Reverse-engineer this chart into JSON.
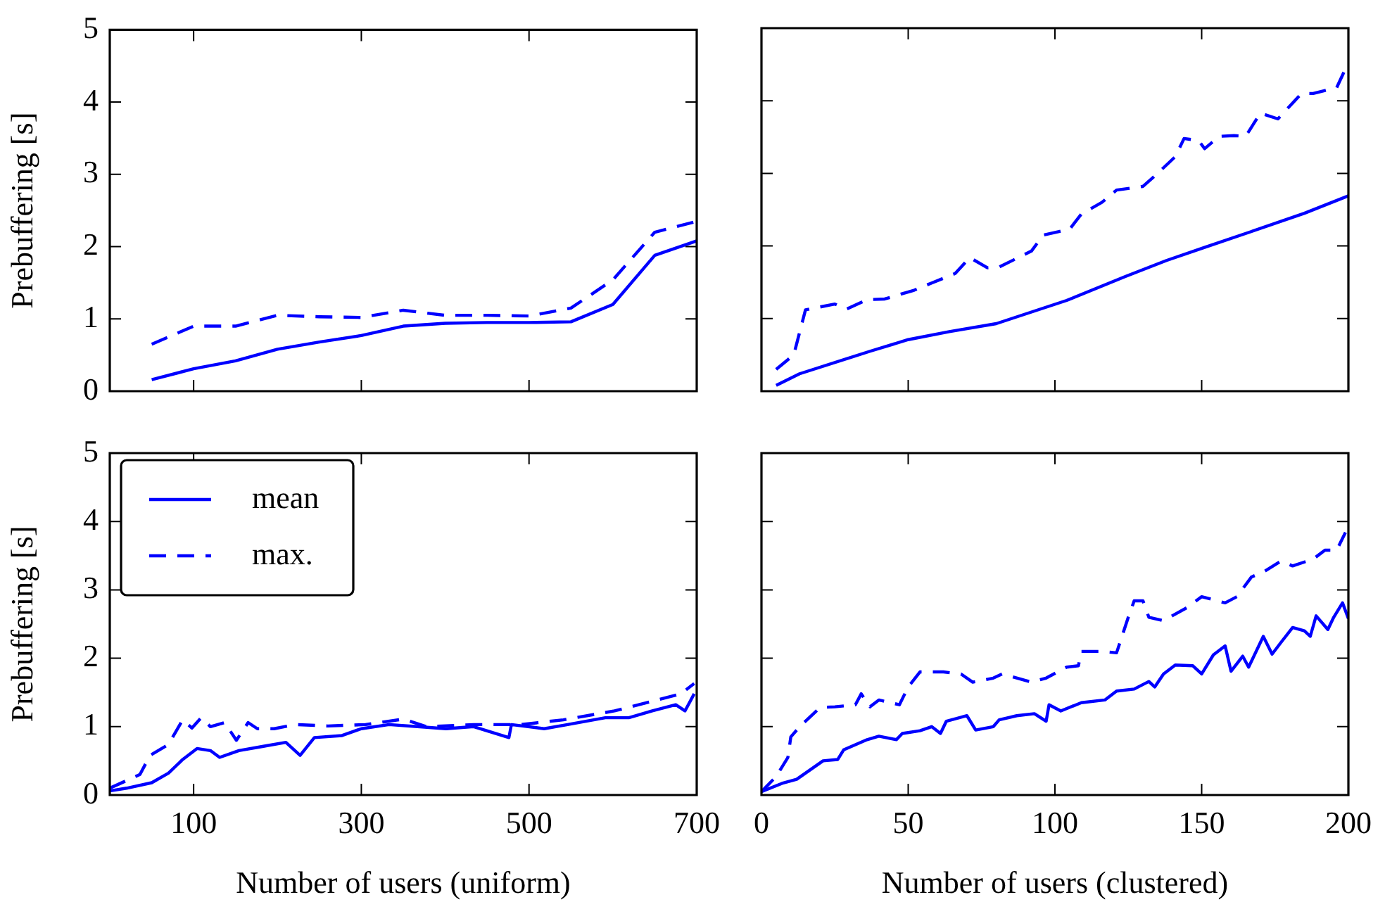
{
  "chart_data": [
    {
      "type": "line",
      "ylabel": "Prebuffering [s]",
      "xlim": [
        0,
        700
      ],
      "xticks": [
        100,
        300,
        500,
        700
      ],
      "ylim": [
        0,
        5
      ],
      "yticks": [
        0,
        1,
        2,
        3,
        4,
        5
      ],
      "tick_labels": "y",
      "series": [
        {
          "color": "#0000ff",
          "line_style": "solid",
          "x": [
            50,
            100,
            150,
            200,
            250,
            300,
            350,
            400,
            450,
            500,
            550,
            600,
            650,
            700
          ],
          "values": [
            0.16,
            0.31,
            0.42,
            0.58,
            0.68,
            0.77,
            0.9,
            0.94,
            0.95,
            0.95,
            0.96,
            1.2,
            1.88,
            2.08
          ]
        },
        {
          "color": "#0000ff",
          "line_style": "dashed",
          "x": [
            50,
            100,
            150,
            200,
            250,
            300,
            350,
            400,
            450,
            500,
            550,
            600,
            650,
            700
          ],
          "values": [
            0.65,
            0.9,
            0.9,
            1.05,
            1.03,
            1.02,
            1.12,
            1.05,
            1.05,
            1.04,
            1.15,
            1.54,
            2.2,
            2.35
          ]
        }
      ]
    },
    {
      "type": "line",
      "xlim": [
        0,
        200
      ],
      "xticks": [
        0,
        50,
        100,
        150,
        200
      ],
      "ylim": [
        0,
        5
      ],
      "yticks": [
        0,
        1,
        2,
        3,
        4,
        5
      ],
      "tick_labels": false,
      "series": [
        {
          "color": "#0000ff",
          "line_style": "solid",
          "x": [
            5,
            13,
            37,
            50,
            64,
            80,
            104,
            124,
            138,
            151,
            167,
            185,
            200
          ],
          "values": [
            0.08,
            0.24,
            0.55,
            0.71,
            0.82,
            0.93,
            1.25,
            1.58,
            1.8,
            1.98,
            2.2,
            2.45,
            2.69
          ]
        },
        {
          "color": "#0000ff",
          "line_style": "dashed",
          "x": [
            5,
            11,
            15,
            25,
            29,
            36,
            42,
            52,
            58,
            66,
            71,
            77,
            81,
            92,
            96,
            105,
            109,
            116,
            121,
            130,
            135,
            141,
            144,
            149,
            151,
            156,
            161,
            165,
            170,
            176,
            184,
            188,
            196,
            199
          ],
          "values": [
            0.3,
            0.5,
            1.12,
            1.2,
            1.13,
            1.26,
            1.27,
            1.39,
            1.49,
            1.62,
            1.84,
            1.7,
            1.71,
            1.93,
            2.15,
            2.23,
            2.44,
            2.6,
            2.77,
            2.82,
            3.0,
            3.23,
            3.48,
            3.45,
            3.34,
            3.51,
            3.52,
            3.51,
            3.83,
            3.75,
            4.1,
            4.1,
            4.18,
            4.44
          ]
        }
      ]
    },
    {
      "type": "line",
      "xlabel": "Number of users (uniform)",
      "ylabel": "Prebuffering [s]",
      "xlim": [
        0,
        700
      ],
      "xticks": [
        100,
        300,
        500,
        700
      ],
      "ylim": [
        0,
        5
      ],
      "yticks": [
        0,
        1,
        2,
        3,
        4,
        5
      ],
      "legend": "top left",
      "series": [
        {
          "name": "mean",
          "color": "#0000ff",
          "line_style": "solid",
          "x": [
            0,
            20,
            50,
            70,
            87,
            104,
            120,
            131,
            154,
            182,
            210,
            227,
            244,
            277,
            300,
            333,
            367,
            401,
            434,
            476,
            479,
            518,
            546,
            591,
            619,
            647,
            675,
            686,
            697
          ],
          "values": [
            0.06,
            0.1,
            0.18,
            0.32,
            0.52,
            0.68,
            0.65,
            0.55,
            0.65,
            0.71,
            0.77,
            0.58,
            0.84,
            0.87,
            0.97,
            1.03,
            1.0,
            0.97,
            1.0,
            0.84,
            1.03,
            0.97,
            1.03,
            1.13,
            1.13,
            1.23,
            1.32,
            1.23,
            1.48
          ]
        },
        {
          "name": "max.",
          "color": "#0000ff",
          "line_style": "dashed",
          "x": [
            0,
            36,
            48,
            70,
            87,
            98,
            109,
            120,
            137,
            151,
            165,
            176,
            196,
            221,
            260,
            305,
            350,
            378,
            434,
            490,
            541,
            602,
            653,
            681,
            697
          ],
          "values": [
            0.1,
            0.3,
            0.58,
            0.74,
            1.1,
            0.98,
            1.13,
            1.0,
            1.06,
            0.8,
            1.06,
            0.97,
            0.97,
            1.03,
            1.01,
            1.03,
            1.11,
            1.0,
            1.03,
            1.03,
            1.1,
            1.23,
            1.39,
            1.48,
            1.63
          ]
        }
      ]
    },
    {
      "type": "line",
      "xlabel": "Number of users (clustered)",
      "xlim": [
        0,
        200
      ],
      "xticks": [
        0,
        50,
        100,
        150,
        200
      ],
      "ylim": [
        0,
        5
      ],
      "yticks": [
        0,
        1,
        2,
        3,
        4,
        5
      ],
      "tick_labels": "x",
      "series": [
        {
          "color": "#0000ff",
          "line_style": "solid",
          "x": [
            0,
            7,
            12,
            21,
            26,
            28,
            36,
            40,
            46,
            48,
            54,
            58,
            61,
            63,
            70,
            73,
            79,
            81,
            87,
            93,
            97,
            98,
            102,
            109,
            117,
            121,
            127,
            132,
            134,
            137,
            141,
            147,
            150,
            154,
            158,
            160,
            164,
            166,
            171,
            174,
            177,
            181,
            185,
            187,
            189,
            193,
            195,
            198,
            200
          ],
          "values": [
            0.05,
            0.17,
            0.23,
            0.5,
            0.52,
            0.66,
            0.81,
            0.86,
            0.81,
            0.9,
            0.94,
            1.0,
            0.9,
            1.08,
            1.16,
            0.95,
            1.0,
            1.1,
            1.16,
            1.19,
            1.08,
            1.32,
            1.23,
            1.35,
            1.39,
            1.52,
            1.55,
            1.66,
            1.58,
            1.77,
            1.9,
            1.89,
            1.77,
            2.05,
            2.18,
            1.81,
            2.03,
            1.87,
            2.32,
            2.06,
            2.23,
            2.45,
            2.4,
            2.32,
            2.62,
            2.42,
            2.6,
            2.81,
            2.58
          ]
        },
        {
          "color": "#0000ff",
          "line_style": "dashed",
          "x": [
            0,
            5,
            9,
            10,
            13,
            20,
            25,
            32,
            34,
            37,
            40,
            47,
            50,
            54,
            60,
            62,
            68,
            72,
            79,
            82,
            92,
            97,
            104,
            108,
            109,
            116,
            121,
            125,
            127,
            130,
            132,
            137,
            145,
            150,
            158,
            162,
            167,
            171,
            177,
            181,
            188,
            192,
            196,
            199
          ],
          "values": [
            0.05,
            0.27,
            0.55,
            0.85,
            1.0,
            1.28,
            1.29,
            1.32,
            1.48,
            1.29,
            1.39,
            1.32,
            1.58,
            1.8,
            1.8,
            1.8,
            1.77,
            1.65,
            1.71,
            1.77,
            1.65,
            1.71,
            1.87,
            1.89,
            2.1,
            2.1,
            2.08,
            2.6,
            2.84,
            2.84,
            2.6,
            2.55,
            2.74,
            2.9,
            2.81,
            2.9,
            3.19,
            3.26,
            3.42,
            3.35,
            3.45,
            3.58,
            3.58,
            3.84
          ]
        }
      ]
    }
  ]
}
